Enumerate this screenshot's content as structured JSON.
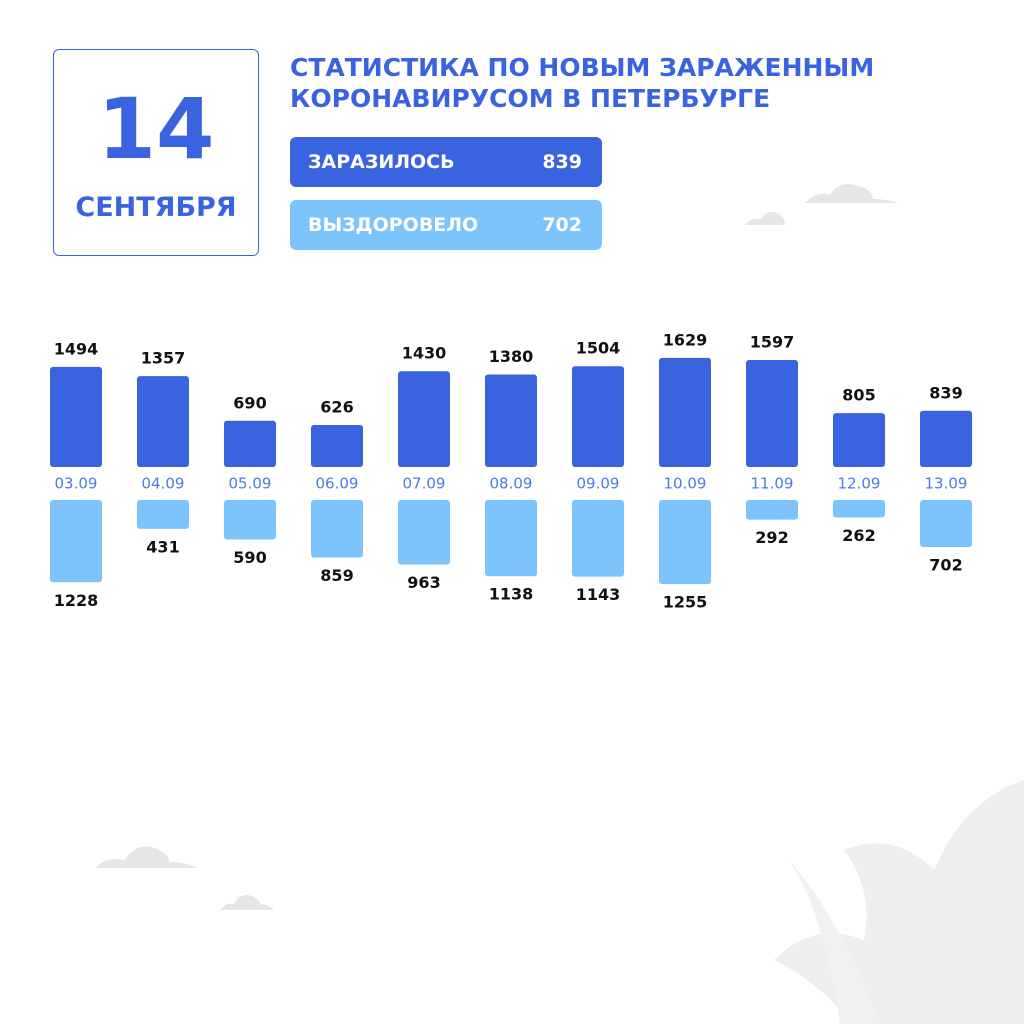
{
  "date": {
    "day": "14",
    "month": "СЕНТЯБРЯ"
  },
  "chart_data": {
    "type": "bar",
    "title": "СТАТИСТИКА ПО НОВЫМ ЗАРАЖЕННЫМ КОРОНАВИРУСОМ В ПЕТЕРБУРГЕ",
    "categories": [
      "03.09",
      "04.09",
      "05.09",
      "06.09",
      "07.09",
      "08.09",
      "09.09",
      "10.09",
      "11.09",
      "12.09",
      "13.09"
    ],
    "series": [
      {
        "name": "ЗАРАЗИЛОСЬ",
        "color": "#3a63e0",
        "values": [
          1494,
          1357,
          690,
          626,
          1430,
          1380,
          1504,
          1629,
          1597,
          805,
          839
        ]
      },
      {
        "name": "ВЫЗДОРОВЕЛО",
        "color": "#7cc4fb",
        "values": [
          1228,
          431,
          590,
          859,
          963,
          1138,
          1143,
          1255,
          292,
          262,
          702
        ]
      }
    ]
  }
}
